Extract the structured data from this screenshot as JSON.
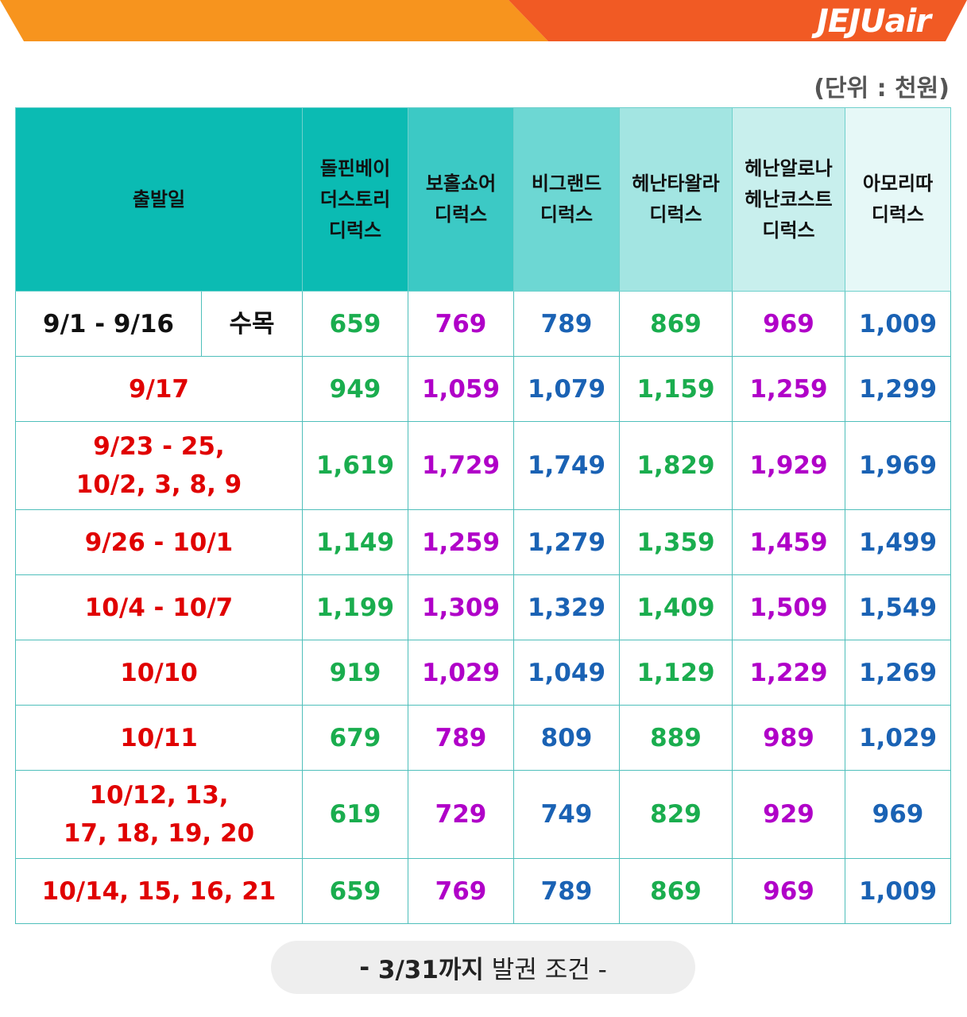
{
  "brand": {
    "logo": "JEJUair",
    "orange": "#f7941e",
    "red_orange": "#f15a24"
  },
  "unit": "(단위 : 천원)",
  "header": {
    "date_col": "출발일",
    "hotels": [
      [
        "돌핀베이",
        "더스토리",
        "디럭스"
      ],
      [
        "보홀쇼어",
        "디럭스"
      ],
      [
        "비그랜드",
        "디럭스"
      ],
      [
        "헤난타왈라",
        "디럭스"
      ],
      [
        "헤난알로나",
        "헤난코스트",
        "디럭스"
      ],
      [
        "아모리따",
        "디럭스"
      ]
    ]
  },
  "rows": [
    {
      "date_lines": [
        "9/1 - 9/16"
      ],
      "weekday": "수목",
      "prices": [
        "659",
        "769",
        "789",
        "869",
        "969",
        "1,009"
      ]
    },
    {
      "date_lines": [
        "9/17"
      ],
      "prices": [
        "949",
        "1,059",
        "1,079",
        "1,159",
        "1,259",
        "1,299"
      ]
    },
    {
      "date_lines": [
        "9/23 - 25,",
        "10/2, 3, 8, 9"
      ],
      "prices": [
        "1,619",
        "1,729",
        "1,749",
        "1,829",
        "1,929",
        "1,969"
      ]
    },
    {
      "date_lines": [
        "9/26 - 10/1"
      ],
      "prices": [
        "1,149",
        "1,259",
        "1,279",
        "1,359",
        "1,459",
        "1,499"
      ]
    },
    {
      "date_lines": [
        "10/4 - 10/7"
      ],
      "prices": [
        "1,199",
        "1,309",
        "1,329",
        "1,409",
        "1,509",
        "1,549"
      ]
    },
    {
      "date_lines": [
        "10/10"
      ],
      "prices": [
        "919",
        "1,029",
        "1,049",
        "1,129",
        "1,229",
        "1,269"
      ]
    },
    {
      "date_lines": [
        "10/11"
      ],
      "prices": [
        "679",
        "789",
        "809",
        "889",
        "989",
        "1,029"
      ]
    },
    {
      "date_lines": [
        "10/12, 13,",
        "17, 18, 19, 20"
      ],
      "prices": [
        "619",
        "729",
        "749",
        "829",
        "929",
        "969"
      ]
    },
    {
      "date_lines": [
        "10/14, 15, 16, 21"
      ],
      "prices": [
        "659",
        "769",
        "789",
        "869",
        "969",
        "1,009"
      ]
    }
  ],
  "price_colors": [
    "#1aad4e",
    "#b000c8",
    "#1a62b4",
    "#1aad4e",
    "#b000c8",
    "#1a62b4"
  ],
  "footer": {
    "dash_left": "- ",
    "bold": "3/31까지",
    "rest": " 발권 조건 -"
  }
}
